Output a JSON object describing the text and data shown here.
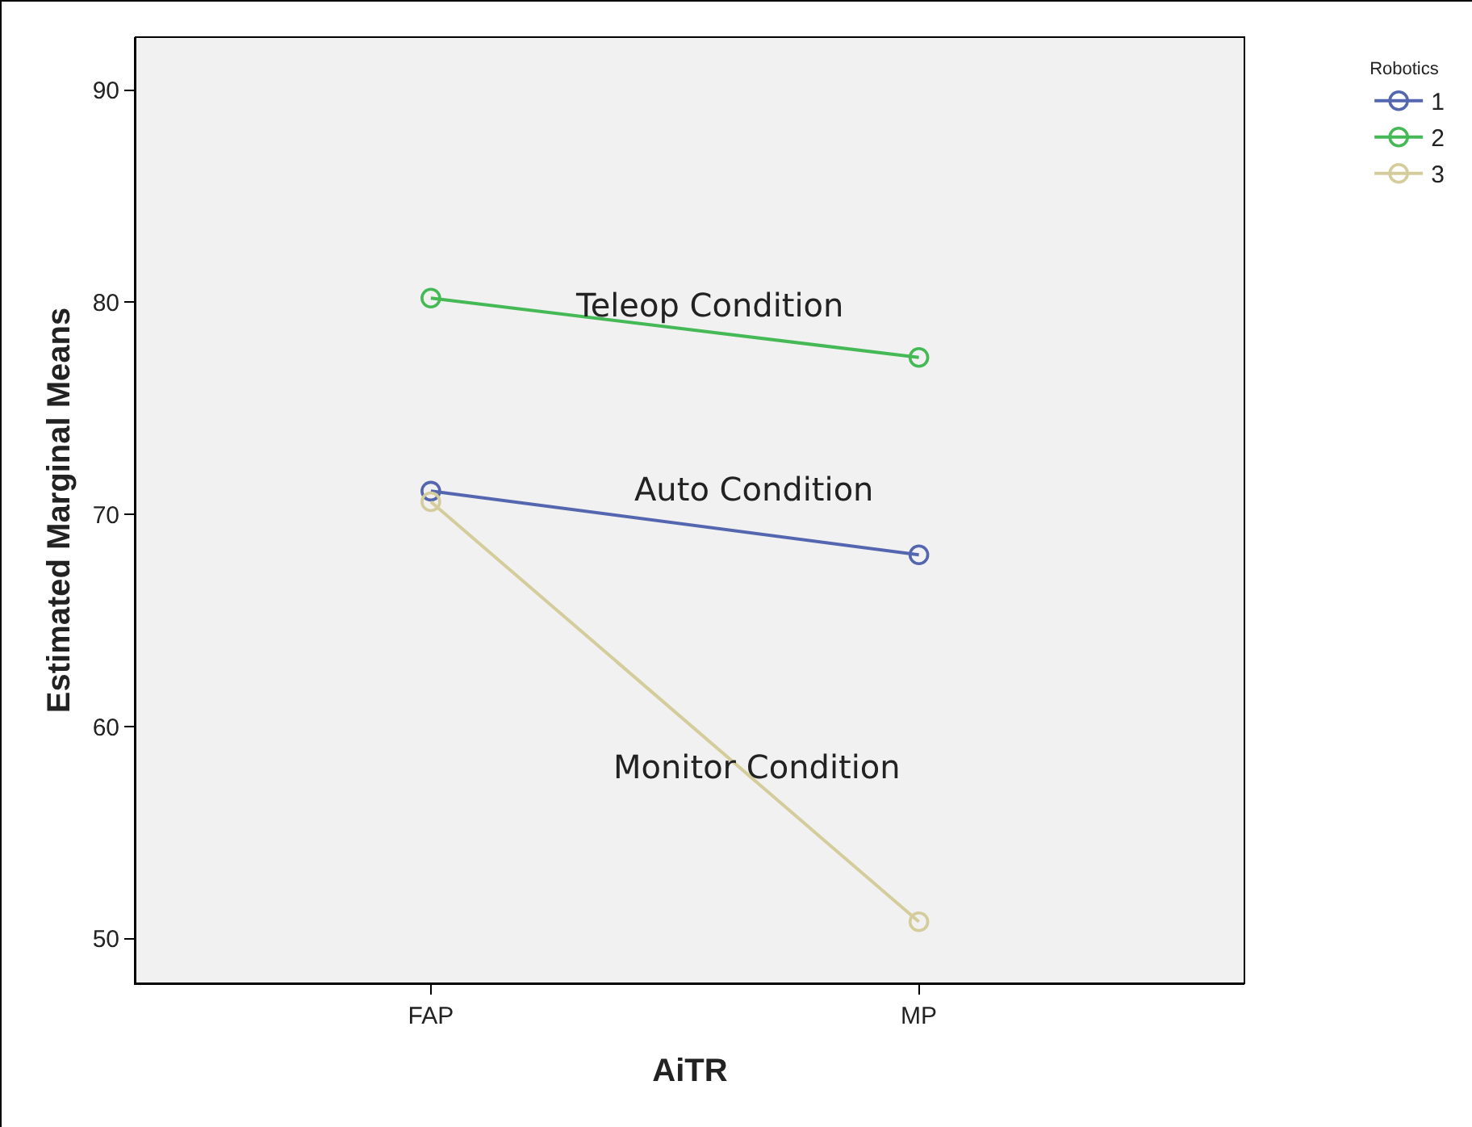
{
  "chart_data": {
    "type": "line",
    "categories": [
      "FAP",
      "MP"
    ],
    "series": [
      {
        "name": "1",
        "color": "#5566b0",
        "values": [
          71.1,
          68.1
        ]
      },
      {
        "name": "2",
        "color": "#45b955",
        "values": [
          80.2,
          77.4
        ]
      },
      {
        "name": "3",
        "color": "#d5cc9c",
        "values": [
          70.6,
          50.8
        ]
      }
    ],
    "xlabel": "AiTR",
    "ylabel": "Estimated Marginal Means",
    "legend_title": "Robotics",
    "annotations": [
      "Teleop Condition",
      "Auto Condition",
      "Monitor Condition"
    ],
    "ylim": [
      47.9,
      92.5
    ],
    "yticks": [
      50,
      60,
      70,
      80,
      90
    ],
    "marker": "circle",
    "line_style": "solid",
    "grid": false,
    "legend": "top right"
  }
}
